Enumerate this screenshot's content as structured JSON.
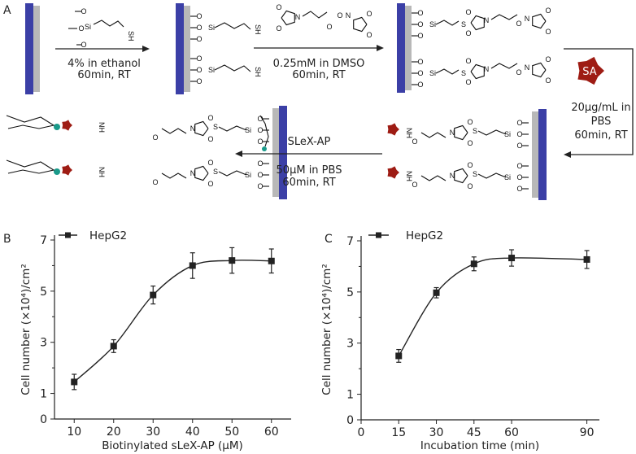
{
  "scheme": {
    "panel_label": "A",
    "step1": {
      "line1": "4% in ethanol",
      "line2": "60min, RT"
    },
    "step2": {
      "line1": "0.25mM in DMSO",
      "line2": "60min, RT"
    },
    "step3": {
      "protein": "SA",
      "line1": "20μg/mL in",
      "line2": "PBS",
      "line3": "60min, RT"
    },
    "step4": {
      "reagent": "SLeX-AP",
      "line1": "50μM in PBS",
      "line2": "60min, RT"
    },
    "atoms": {
      "O": "O",
      "N": "N",
      "S": "S",
      "Si": "Si",
      "SH": "SH",
      "NH": "NH"
    },
    "colors": {
      "substrate": "#3b3fa6",
      "coating": "#b8b8b8",
      "streptavidin": "#9e1c14",
      "aptamer": "#4f7a3a",
      "biotin": "#1a9a8a"
    }
  },
  "chart_data": [
    {
      "panel_label": "B",
      "type": "line",
      "xlabel": "Biotinylated sLeX-AP (μM)",
      "ylabel": "Cell number (×10⁴)/cm²",
      "xlim": [
        5,
        65
      ],
      "ylim": [
        0,
        7
      ],
      "xticks": [
        10,
        20,
        30,
        40,
        50,
        60
      ],
      "yticks": [
        0,
        1,
        3,
        5,
        7
      ],
      "grid": false,
      "legend": "top-left",
      "series": [
        {
          "name": "HepG2",
          "x": [
            10,
            20,
            30,
            40,
            50,
            60
          ],
          "y": [
            1.45,
            2.85,
            4.85,
            6.0,
            6.2,
            6.18
          ],
          "yerr": [
            0.3,
            0.25,
            0.35,
            0.5,
            0.5,
            0.47
          ],
          "marker": "square",
          "color": "#222222"
        }
      ]
    },
    {
      "panel_label": "C",
      "type": "line",
      "xlabel": "Incubation time (min)",
      "ylabel": "Cell number (×10⁴)/cm²",
      "xlim": [
        0,
        95
      ],
      "ylim": [
        0,
        7
      ],
      "xticks": [
        0,
        15,
        30,
        45,
        60,
        90
      ],
      "yticks": [
        0,
        1,
        3,
        5,
        7
      ],
      "grid": false,
      "legend": "top-left",
      "series": [
        {
          "name": "HepG2",
          "x": [
            15,
            30,
            45,
            60,
            90
          ],
          "y": [
            2.5,
            4.97,
            6.1,
            6.33,
            6.27
          ],
          "yerr": [
            0.25,
            0.2,
            0.27,
            0.32,
            0.35
          ],
          "marker": "square",
          "color": "#222222"
        }
      ]
    }
  ]
}
